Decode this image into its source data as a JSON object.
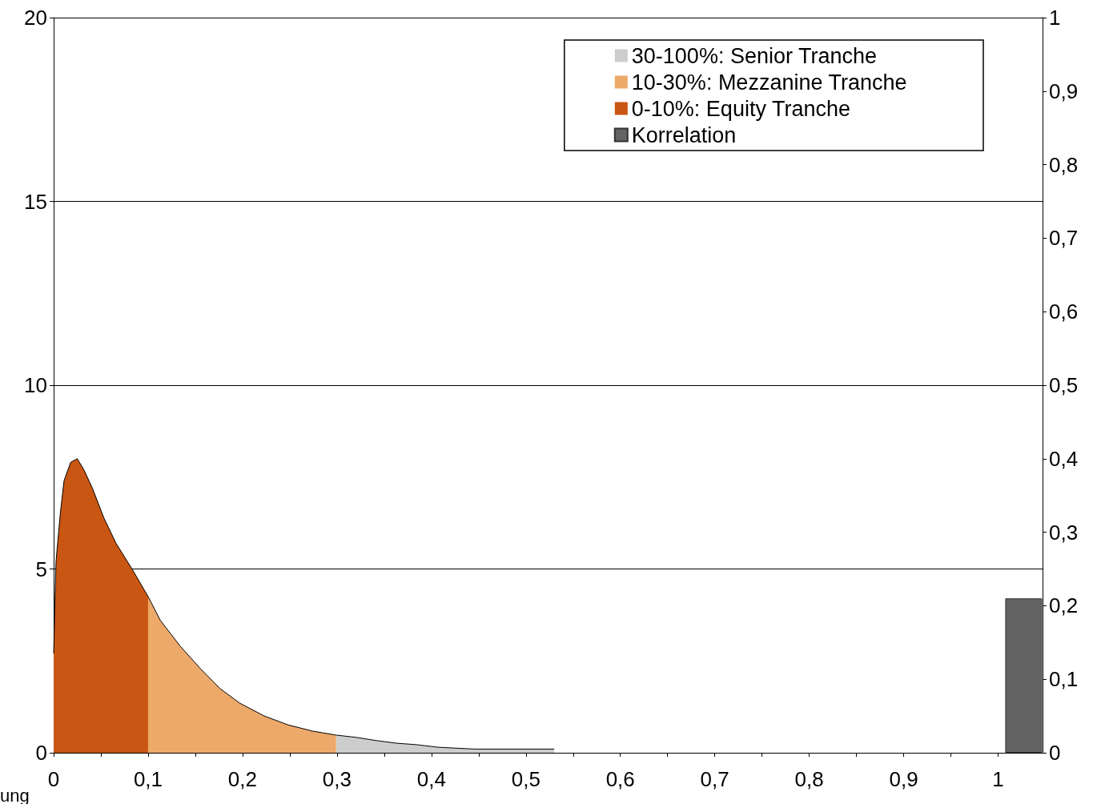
{
  "chart_data": {
    "type": "area",
    "xlim": [
      0,
      1.047
    ],
    "ylim": [
      0,
      20
    ],
    "y2lim": [
      0,
      1
    ],
    "xticks": [
      {
        "value": 0,
        "label": "0"
      },
      {
        "value": 0.05,
        "label": null
      },
      {
        "value": 0.1,
        "label": "0,1"
      },
      {
        "value": 0.15,
        "label": null
      },
      {
        "value": 0.2,
        "label": "0,2"
      },
      {
        "value": 0.25,
        "label": null
      },
      {
        "value": 0.3,
        "label": "0,3"
      },
      {
        "value": 0.35,
        "label": null
      },
      {
        "value": 0.4,
        "label": "0,4"
      },
      {
        "value": 0.45,
        "label": null
      },
      {
        "value": 0.5,
        "label": "0,5"
      },
      {
        "value": 0.55,
        "label": null
      },
      {
        "value": 0.6,
        "label": "0,6"
      },
      {
        "value": 0.65,
        "label": null
      },
      {
        "value": 0.7,
        "label": "0,7"
      },
      {
        "value": 0.75,
        "label": null
      },
      {
        "value": 0.8,
        "label": "0,8"
      },
      {
        "value": 0.85,
        "label": null
      },
      {
        "value": 0.9,
        "label": "0,9"
      },
      {
        "value": 0.95,
        "label": null
      },
      {
        "value": 1,
        "label": "1"
      }
    ],
    "yticks": [
      0,
      5,
      10,
      15,
      20
    ],
    "y2ticks": [
      0,
      {
        "value": 0.1,
        "label": "0,1"
      },
      {
        "value": 0.2,
        "label": "0,2"
      },
      {
        "value": 0.3,
        "label": "0,3"
      },
      {
        "value": 0.4,
        "label": "0,4"
      },
      {
        "value": 0.5,
        "label": "0,5"
      },
      {
        "value": 0.6,
        "label": "0,6"
      },
      {
        "value": 0.7,
        "label": "0,7"
      },
      {
        "value": 0.8,
        "label": "0,8"
      },
      {
        "value": 0.9,
        "label": "0,9"
      },
      1
    ],
    "grid": "y",
    "legend": "top right",
    "marker": "none",
    "annotations": [
      "ung"
    ],
    "series": [
      {
        "name": "30-100%: Senior Tranche",
        "color": "#cdcdcd",
        "x": [
          0.299,
          0.32,
          0.342,
          0.363,
          0.384,
          0.407,
          0.446,
          0.53
        ],
        "values": [
          0.48,
          0.42,
          0.33,
          0.26,
          0.22,
          0.15,
          0.1,
          0.1
        ]
      },
      {
        "name": "10-30%: Mezzanine Tranche",
        "color": "#eda96a",
        "x": [
          0.1,
          0.113,
          0.134,
          0.155,
          0.176,
          0.197,
          0.223,
          0.248,
          0.274,
          0.299
        ],
        "values": [
          4.25,
          3.6,
          2.9,
          2.3,
          1.75,
          1.35,
          1.0,
          0.76,
          0.59,
          0.48
        ]
      },
      {
        "name": "0-10%: Equity Tranche",
        "color": "#c95612",
        "x": [
          0,
          0.0025,
          0.007,
          0.011,
          0.018,
          0.025,
          0.032,
          0.041,
          0.053,
          0.066,
          0.083,
          0.1
        ],
        "values": [
          2.7,
          5.2,
          6.5,
          7.4,
          7.9,
          8.0,
          7.7,
          7.2,
          6.4,
          5.7,
          5.0,
          4.25
        ]
      },
      {
        "name": "Korrelation",
        "type": "bar",
        "axis": "y2",
        "color": "#636363",
        "x": [
          1.027
        ],
        "values": [
          0.21
        ]
      }
    ]
  }
}
